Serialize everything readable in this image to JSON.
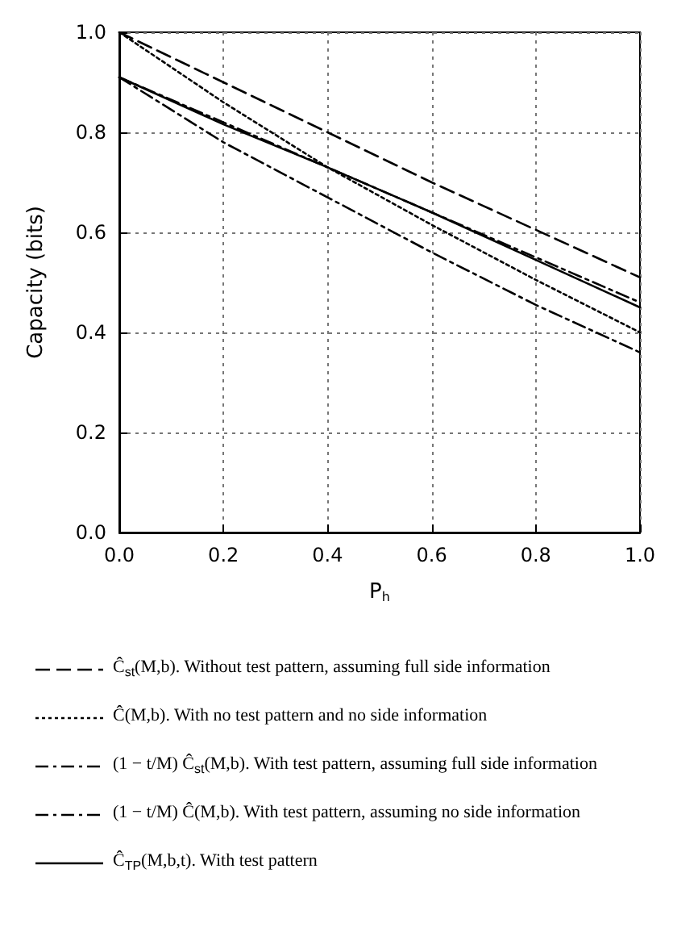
{
  "chart_data": {
    "type": "line",
    "xlabel": "P$_{h}$",
    "ylabel": "Capacity (bits)",
    "x": [
      0,
      0.2,
      0.4,
      0.6,
      0.8,
      1.0
    ],
    "xlim": [
      0,
      1
    ],
    "ylim": [
      0,
      1
    ],
    "xticks": [
      {
        "value": 0,
        "label": "0.0"
      },
      0.2,
      0.4,
      0.6,
      0.8,
      {
        "value": 1,
        "label": "1.0"
      }
    ],
    "yticks": [
      {
        "value": 0,
        "label": "0.0"
      },
      0.2,
      0.4,
      0.6,
      0.8,
      {
        "value": 1,
        "label": "1.0"
      }
    ],
    "grid": true,
    "legend": "bottom",
    "marker": "none",
    "series": [
      {
        "name": "Ĉ$_{st}$(M,b). Without test pattern, assuming full side information",
        "color": "#000000",
        "line_style": "dashed",
        "values": [
          1.0,
          0.9,
          0.8,
          0.7,
          0.605,
          0.51
        ]
      },
      {
        "name": "Ĉ(M,b). With no test pattern and no side information",
        "color": "#000000",
        "line_style": "dotted",
        "values": [
          1.0,
          0.86,
          0.73,
          0.615,
          0.505,
          0.4
        ]
      },
      {
        "name": "(1 − t/M) Ĉ$_{st}$(M,b). With test pattern, assuming full side information",
        "color": "#000000",
        "line_style": "dashdot",
        "values": [
          0.91,
          0.82,
          0.73,
          0.64,
          0.55,
          0.46
        ]
      },
      {
        "name": "(1 − t/M) Ĉ(M,b). With test pattern, assuming no side information",
        "color": "#000000",
        "line_style": "dashdot",
        "values": [
          0.91,
          0.78,
          0.67,
          0.56,
          0.455,
          0.36
        ]
      },
      {
        "name": "Ĉ$_{TP}$(M,b,t). With test pattern",
        "color": "#000000",
        "line_style": "solid",
        "values": [
          0.91,
          0.816,
          0.73,
          0.64,
          0.545,
          0.45
        ]
      }
    ]
  }
}
